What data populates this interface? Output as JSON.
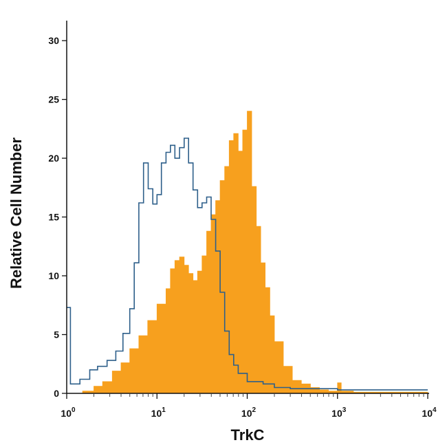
{
  "chart_data": {
    "type": "area",
    "xlabel": "TrkC",
    "ylabel": "Relative Cell Number",
    "x_scale": "log10",
    "xlim": [
      1,
      10000
    ],
    "ylim": [
      0,
      31
    ],
    "x_ticks": [
      1,
      10,
      100,
      1000,
      10000
    ],
    "x_tick_labels": [
      {
        "base": "10",
        "exp": "0"
      },
      {
        "base": "10",
        "exp": "1"
      },
      {
        "base": "10",
        "exp": "2"
      },
      {
        "base": "10",
        "exp": "3"
      },
      {
        "base": "10",
        "exp": "4"
      }
    ],
    "y_ticks": [
      0,
      5,
      10,
      15,
      20,
      25,
      30
    ],
    "y_tick_labels": [
      "0",
      "5",
      "10",
      "15",
      "20",
      "25",
      "30"
    ],
    "grid": false,
    "legend": "none",
    "series": [
      {
        "style": "outline",
        "color": "#2d5f8a",
        "x": [
          1.0,
          1.1,
          1.4,
          1.8,
          2.2,
          2.8,
          3.5,
          4.2,
          5.0,
          5.6,
          6.3,
          7.1,
          8.0,
          9.0,
          10,
          11.2,
          12.6,
          14.1,
          15.8,
          17.8,
          20,
          22.4,
          25.1,
          28.2,
          31.6,
          35.5,
          39.8,
          44.7,
          50.1,
          56.2,
          63.1,
          70.8,
          79.4,
          100,
          150,
          200,
          300,
          500,
          1000,
          2000,
          5000,
          10000
        ],
        "y": [
          7.3,
          0.8,
          1.2,
          2.0,
          2.3,
          2.8,
          3.6,
          5.1,
          7.2,
          11.1,
          16.2,
          19.6,
          17.4,
          16.1,
          16.9,
          19.6,
          20.5,
          21.1,
          20.0,
          20.9,
          21.7,
          19.6,
          17.3,
          15.8,
          16.2,
          16.7,
          14.8,
          12.1,
          8.6,
          5.3,
          3.3,
          2.4,
          1.7,
          1.0,
          0.8,
          0.5,
          0.4,
          0.4,
          0.3,
          0.3,
          0.3,
          0.3
        ]
      },
      {
        "style": "filled",
        "color": "#f7a01e",
        "x": [
          1.0,
          1.5,
          2.0,
          2.5,
          3.2,
          4.0,
          5.0,
          6.3,
          7.9,
          10,
          12.6,
          14.1,
          15.8,
          17.8,
          20,
          22.4,
          25.1,
          28.2,
          31.6,
          35.5,
          39.8,
          44.7,
          50.1,
          56.2,
          63.1,
          70.8,
          79.4,
          89.1,
          100,
          112,
          126,
          141,
          158,
          178,
          200,
          251,
          316,
          398,
          501,
          631,
          794,
          900,
          1000,
          1100,
          1500,
          3000,
          10000
        ],
        "y": [
          0.0,
          0.2,
          0.6,
          1.0,
          1.9,
          2.6,
          3.8,
          4.9,
          6.2,
          7.6,
          8.9,
          10.6,
          11.3,
          11.6,
          10.9,
          10.2,
          9.6,
          10.4,
          11.7,
          13.8,
          15.2,
          16.4,
          18.1,
          19.3,
          21.5,
          22.1,
          20.6,
          22.4,
          24.0,
          17.6,
          14.2,
          11.1,
          9.0,
          6.6,
          4.4,
          2.3,
          1.1,
          0.8,
          0.5,
          0.3,
          0.2,
          0.2,
          0.9,
          0.2,
          0.1,
          0.1,
          0.0
        ]
      }
    ]
  }
}
